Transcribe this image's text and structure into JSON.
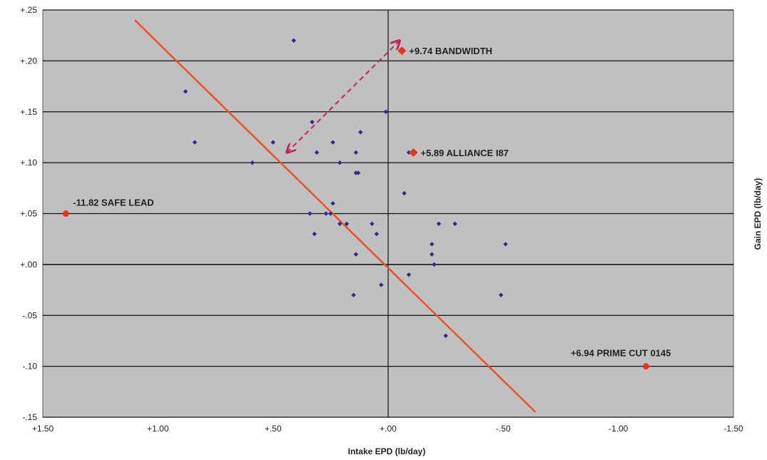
{
  "chart_data": {
    "type": "scatter",
    "xlabel": "Intake EPD (lb/day)",
    "ylabel": "Gain EPD (lb/day)",
    "x_axis_reversed": true,
    "xlim": [
      1.5,
      -1.5
    ],
    "ylim": [
      -0.15,
      0.25
    ],
    "x_ticks": [
      1.5,
      1.0,
      0.5,
      0.0,
      -0.5,
      -1.0,
      -1.5
    ],
    "x_tick_labels": [
      "+1.50",
      "+1.00",
      "+.50",
      "+.00",
      "-.50",
      "-1.00",
      "-1.50"
    ],
    "y_ticks": [
      0.25,
      0.2,
      0.15,
      0.1,
      0.05,
      0.0,
      -0.05,
      -0.1,
      -0.15
    ],
    "y_tick_labels": [
      "+.25",
      "+.20",
      "+.15",
      "+.10",
      "+.05",
      "+.00",
      "-.05",
      "-.10",
      "-.15"
    ],
    "grid": "horizontal",
    "colors": {
      "plot_background": "#c0c0c0",
      "points": "#2b2b8c",
      "highlight_points": "#e8341c",
      "regression_line": "#e8522a",
      "arrow": "#c0245a"
    },
    "points": [
      {
        "x": 0.41,
        "y": 0.22
      },
      {
        "x": 0.88,
        "y": 0.17
      },
      {
        "x": 0.84,
        "y": 0.12
      },
      {
        "x": 0.59,
        "y": 0.1
      },
      {
        "x": 0.5,
        "y": 0.12
      },
      {
        "x": 0.33,
        "y": 0.14
      },
      {
        "x": 0.31,
        "y": 0.11
      },
      {
        "x": 0.24,
        "y": 0.12
      },
      {
        "x": 0.21,
        "y": 0.1
      },
      {
        "x": 0.14,
        "y": 0.11
      },
      {
        "x": 0.12,
        "y": 0.13
      },
      {
        "x": 0.14,
        "y": 0.09
      },
      {
        "x": 0.13,
        "y": 0.09
      },
      {
        "x": 0.01,
        "y": 0.15
      },
      {
        "x": 0.34,
        "y": 0.05
      },
      {
        "x": 0.27,
        "y": 0.05
      },
      {
        "x": 0.25,
        "y": 0.05
      },
      {
        "x": 0.24,
        "y": 0.06
      },
      {
        "x": 0.21,
        "y": 0.04
      },
      {
        "x": 0.18,
        "y": 0.04
      },
      {
        "x": 0.32,
        "y": 0.03
      },
      {
        "x": 0.07,
        "y": 0.04
      },
      {
        "x": 0.05,
        "y": 0.03
      },
      {
        "x": 0.14,
        "y": 0.01
      },
      {
        "x": 0.15,
        "y": -0.03
      },
      {
        "x": 0.03,
        "y": -0.02
      },
      {
        "x": -0.07,
        "y": 0.07
      },
      {
        "x": -0.09,
        "y": 0.11
      },
      {
        "x": -0.09,
        "y": -0.01
      },
      {
        "x": -0.19,
        "y": 0.02
      },
      {
        "x": -0.19,
        "y": 0.01
      },
      {
        "x": -0.2,
        "y": 0.0
      },
      {
        "x": -0.22,
        "y": 0.04
      },
      {
        "x": -0.29,
        "y": 0.04
      },
      {
        "x": -0.25,
        "y": -0.07
      },
      {
        "x": -0.49,
        "y": -0.03
      },
      {
        "x": -0.51,
        "y": 0.02
      }
    ],
    "highlights": [
      {
        "x": 1.4,
        "y": 0.05,
        "label": "-11.82  SAFE LEAD",
        "marker": "circle"
      },
      {
        "x": -0.06,
        "y": 0.21,
        "label": "+9.74  BANDWIDTH",
        "marker": "diamond"
      },
      {
        "x": -0.11,
        "y": 0.11,
        "label": "+5.89  ALLIANCE I87",
        "marker": "diamond"
      },
      {
        "x": -1.12,
        "y": -0.1,
        "label": "+6.94  PRIME CUT 0145",
        "marker": "circle"
      }
    ],
    "regression_line": {
      "x": [
        1.1,
        -0.64
      ],
      "y": [
        0.24,
        -0.145
      ]
    },
    "arrow": {
      "from": {
        "x": -0.05,
        "y": 0.22
      },
      "to": {
        "x": 0.44,
        "y": 0.11
      },
      "style": "dashed",
      "heads": "both"
    }
  }
}
